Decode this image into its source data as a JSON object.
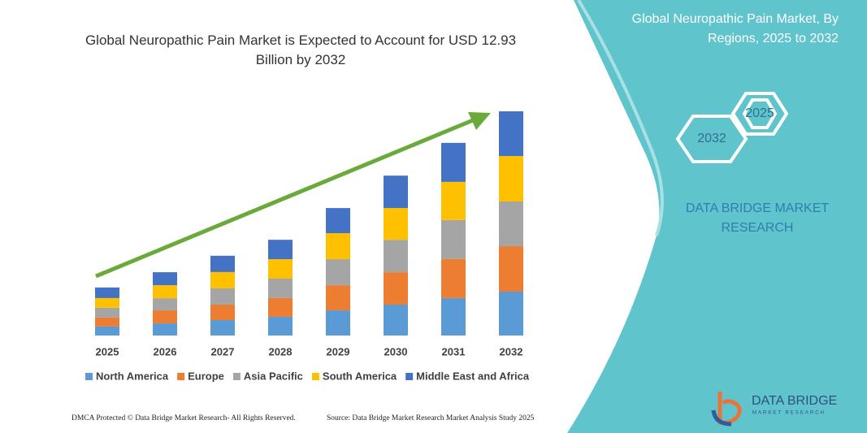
{
  "chart_data": {
    "type": "bar",
    "stacked": true,
    "title": "Global Neuropathic Pain Market is Expected to Account for USD 12.93 Billion by 2032",
    "categories": [
      "2025",
      "2026",
      "2027",
      "2028",
      "2029",
      "2030",
      "2031",
      "2032"
    ],
    "series": [
      {
        "name": "North America",
        "color": "#5b9bd5",
        "values": [
          0.52,
          0.7,
          0.89,
          1.08,
          1.45,
          1.78,
          2.16,
          2.53
        ]
      },
      {
        "name": "Europe",
        "color": "#ed7d31",
        "values": [
          0.52,
          0.75,
          0.89,
          1.08,
          1.45,
          1.87,
          2.25,
          2.62
        ]
      },
      {
        "name": "Asia Pacific",
        "color": "#a5a5a5",
        "values": [
          0.56,
          0.7,
          0.94,
          1.12,
          1.5,
          1.87,
          2.25,
          2.58
        ]
      },
      {
        "name": "South America",
        "color": "#ffc000",
        "values": [
          0.56,
          0.75,
          0.94,
          1.12,
          1.5,
          1.83,
          2.2,
          2.62
        ]
      },
      {
        "name": "Middle East and Africa",
        "color": "#4472c4",
        "values": [
          0.61,
          0.75,
          0.94,
          1.12,
          1.45,
          1.87,
          2.25,
          2.58
        ]
      }
    ]
  },
  "panel": {
    "title": "Global Neuropathic Pain Market, By Regions, 2025 to 2032",
    "hexagons": [
      "2025",
      "2032"
    ],
    "brand": "DATA BRIDGE MARKET RESEARCH"
  },
  "logo": {
    "name": "DATA BRIDGE",
    "tagline": "MARKET RESEARCH"
  },
  "footer": {
    "rights": "DMCA Protected © Data Bridge Market Research- All Rights Reserved.",
    "source": "Source: Data Bridge Market Research Market Analysis Study 2025"
  }
}
